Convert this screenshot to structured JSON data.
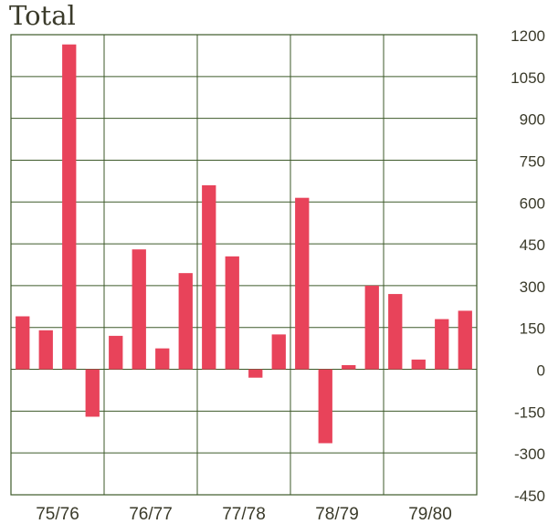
{
  "chart_data": {
    "type": "bar",
    "title": "Total",
    "xlabel": "",
    "ylabel": "",
    "ylim": [
      -450,
      1200
    ],
    "yticks": [
      1200,
      1050,
      900,
      750,
      600,
      450,
      300,
      150,
      0,
      -150,
      -300,
      -450
    ],
    "categories": [
      "75/76",
      "76/77",
      "77/78",
      "78/79",
      "79/80"
    ],
    "bars_per_category": 4,
    "values": [
      [
        190,
        140,
        1165,
        -170
      ],
      [
        120,
        430,
        75,
        345
      ],
      [
        660,
        405,
        -30,
        125
      ],
      [
        615,
        -265,
        15,
        300
      ],
      [
        270,
        35,
        180,
        210
      ]
    ],
    "grid": true,
    "y_axis_side": "right",
    "colors": {
      "bar": "#e8435a",
      "grid": "#3e5a2a",
      "text": "#3a3a2a"
    }
  }
}
